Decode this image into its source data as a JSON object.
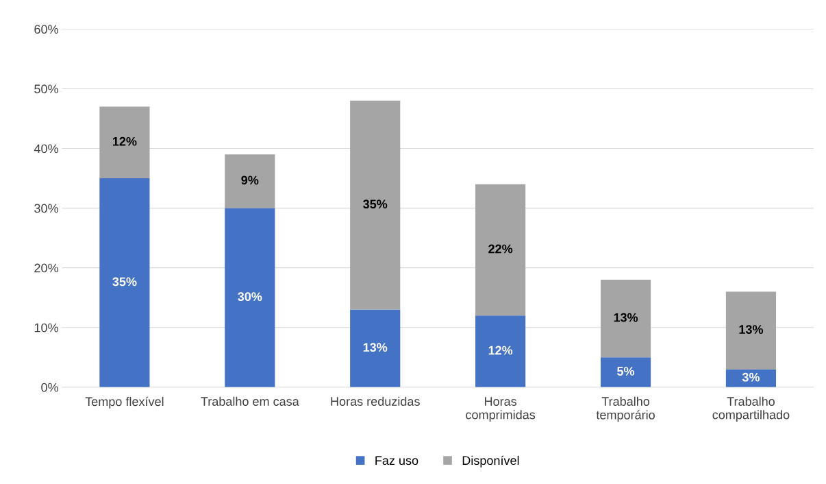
{
  "chart_data": {
    "type": "bar",
    "stacked": true,
    "categories": [
      "Tempo flexível",
      "Trabalho em casa",
      "Horas reduzidas",
      "Horas\ncomprimidas",
      "Trabalho\ntemporário",
      "Trabalho\ncompartilhado"
    ],
    "series": [
      {
        "name": "Faz uso",
        "color": "#4472c4",
        "values": [
          35,
          30,
          13,
          12,
          5,
          3
        ],
        "value_labels": [
          "35%",
          "30%",
          "13%",
          "12%",
          "5%",
          "3%"
        ]
      },
      {
        "name": "Disponível",
        "color": "#a5a5a5",
        "values": [
          12,
          9,
          35,
          22,
          13,
          13
        ],
        "value_labels": [
          "12%",
          "9%",
          "35%",
          "22%",
          "13%",
          "13%"
        ]
      }
    ],
    "ylim": [
      0,
      60
    ],
    "yticks": [
      {
        "value": 0,
        "label": "0%"
      },
      {
        "value": 10,
        "label": "10%"
      },
      {
        "value": 20,
        "label": "20%"
      },
      {
        "value": 30,
        "label": "30%"
      },
      {
        "value": 40,
        "label": "40%"
      },
      {
        "value": 50,
        "label": "50%"
      },
      {
        "value": 60,
        "label": "60%"
      }
    ],
    "grid": "y",
    "legend": "bottom"
  }
}
